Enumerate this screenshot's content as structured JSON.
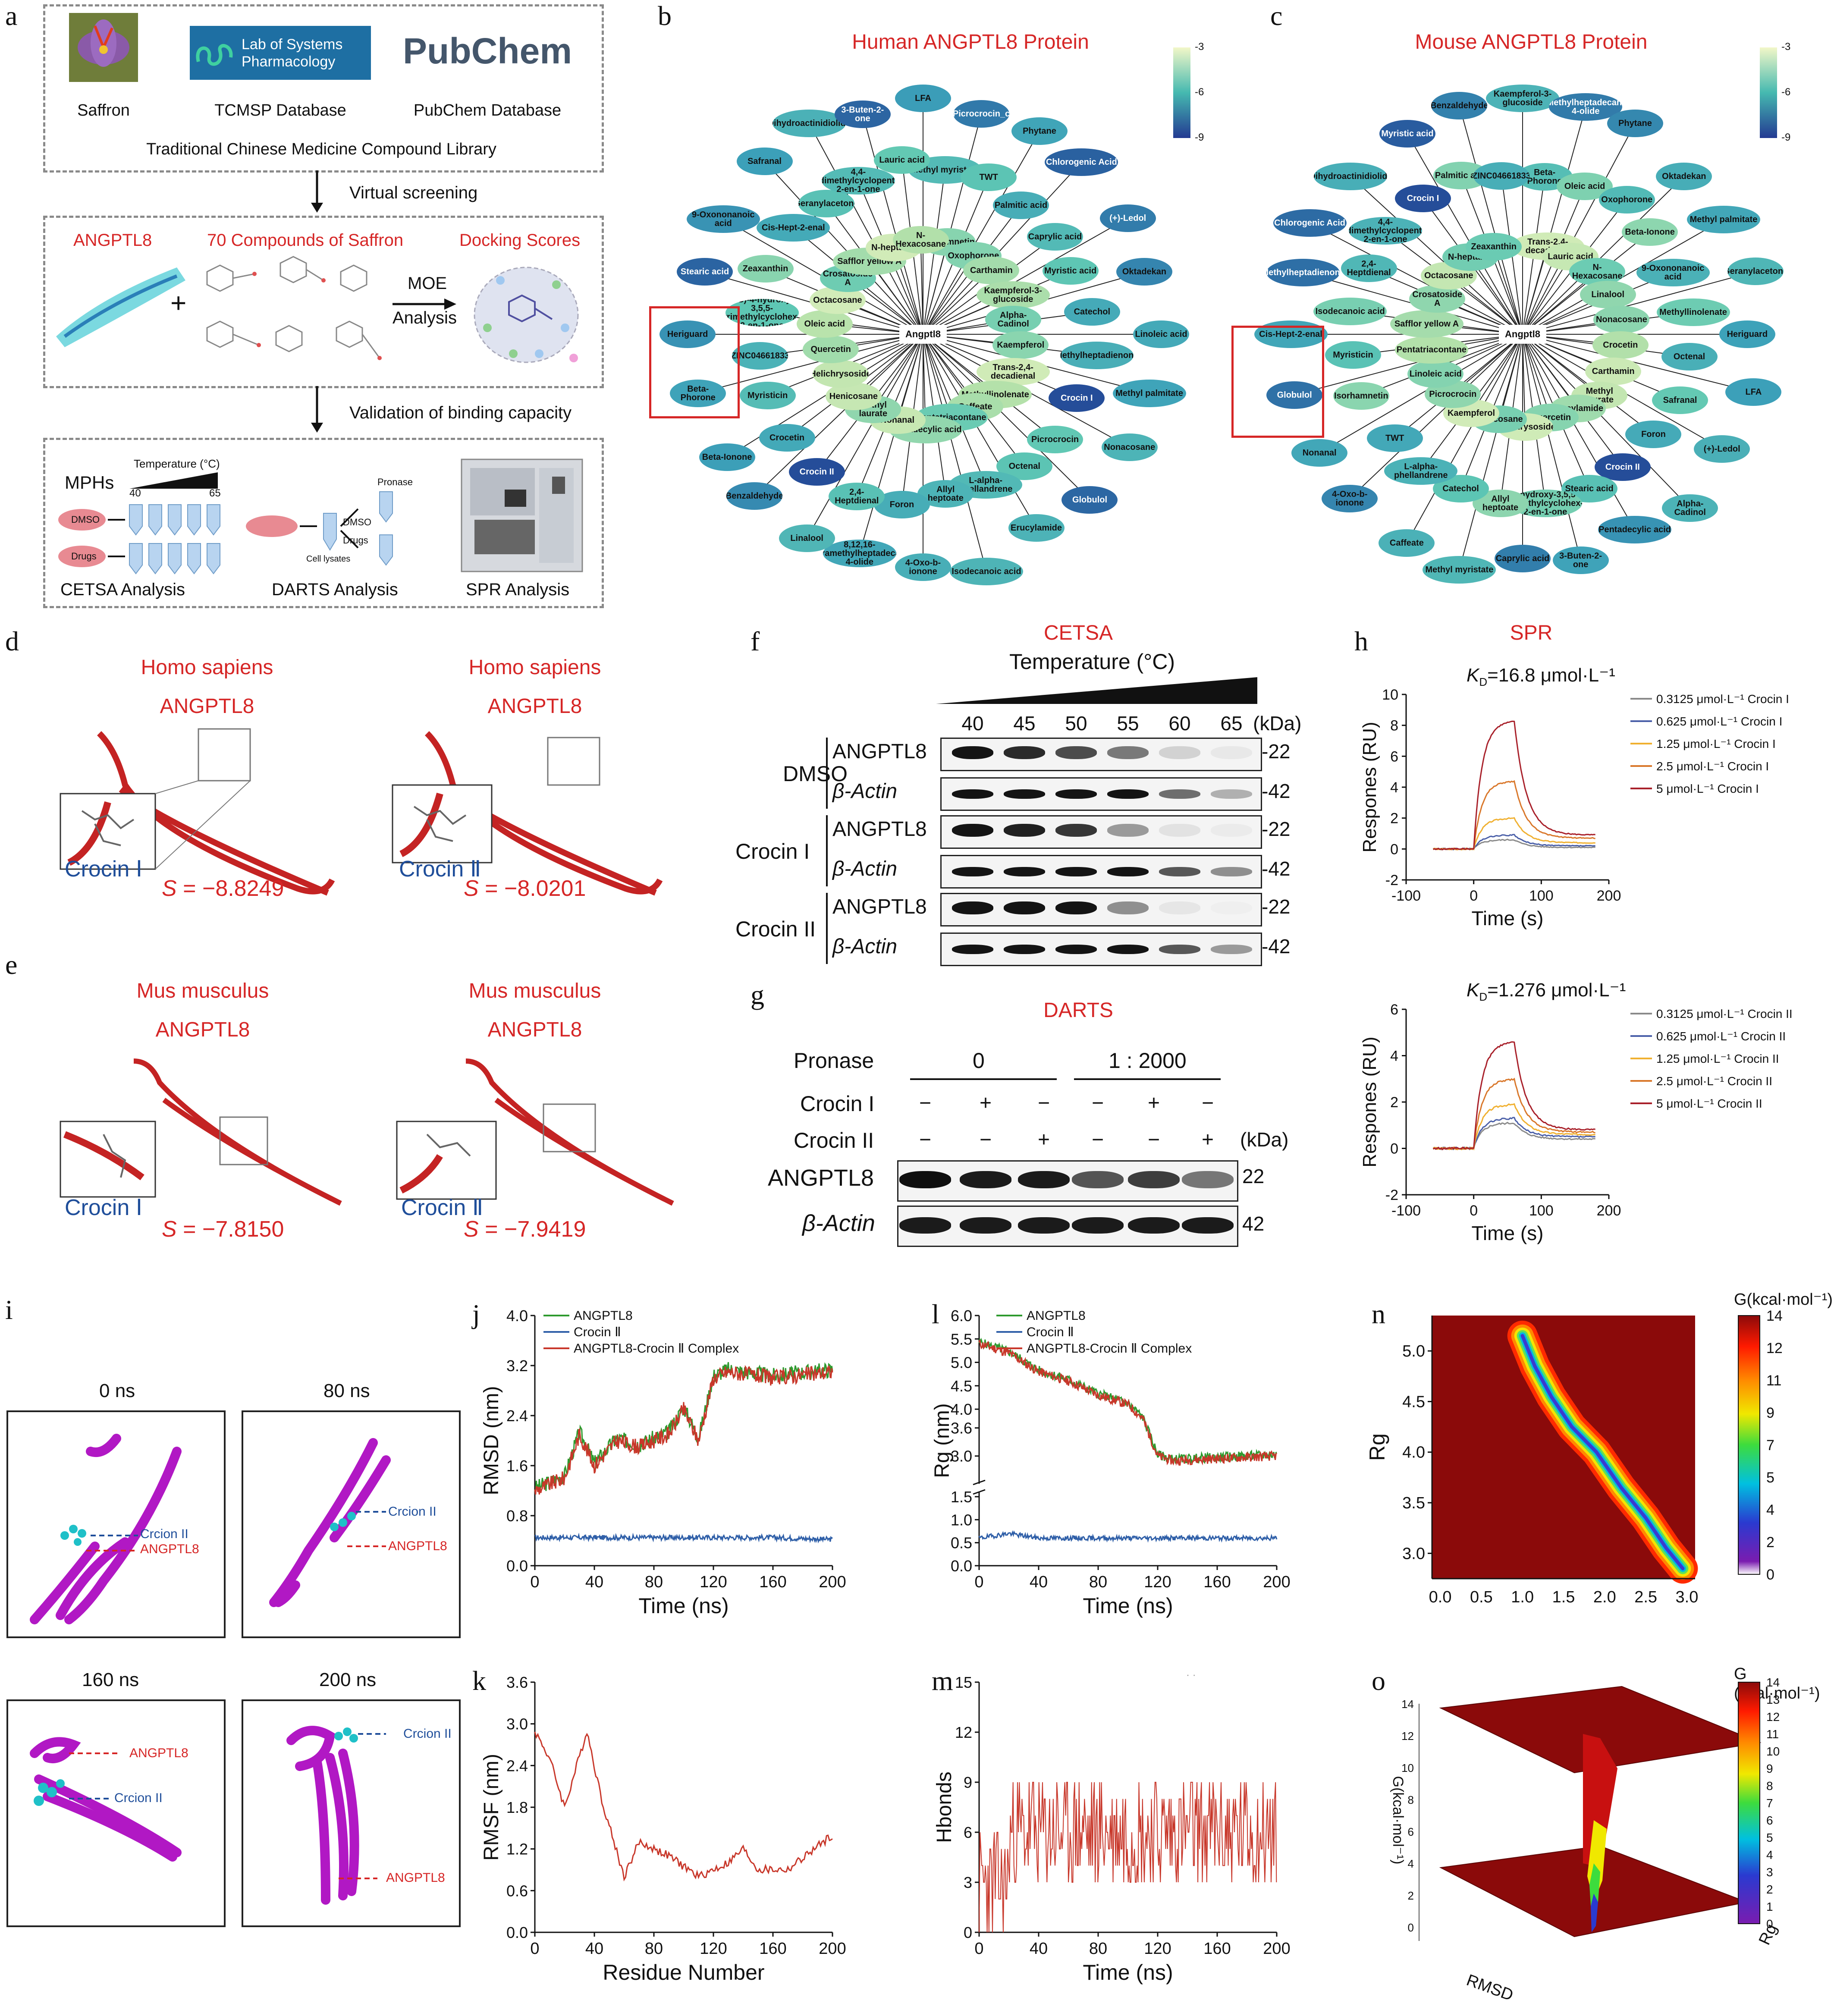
{
  "panel_labels": [
    "a",
    "b",
    "c",
    "d",
    "e",
    "f",
    "g",
    "h",
    "i",
    "j",
    "k",
    "l",
    "m",
    "n",
    "o"
  ],
  "a": {
    "sources": [
      "Saffron",
      "TCMSP Database",
      "PubChem Database"
    ],
    "tcmsp_logo": "Lab of Systems Pharmacology",
    "pubchem_logo": "PubChem",
    "library": "Traditional Chinese Medicine Compound Library",
    "arrow1": "Virtual screening",
    "target": "ANGPTL8",
    "compounds": "70 Compounds of Saffron",
    "scores": "Docking Scores",
    "plus": "+",
    "moe": "MOE",
    "analysis": "Analysis",
    "arrow2": "Validation of binding capacity",
    "mphs": "MPHs",
    "temp": "Temperature (°C)",
    "t40": "40",
    "t65": "65",
    "dmso": "DMSO",
    "drugs": "Drugs",
    "pronase": "Pronase",
    "cell_lysates": "Cell lysates",
    "cetsa": "CETSA Analysis",
    "darts": "DARTS Analysis",
    "spr": "SPR Analysis"
  },
  "b": {
    "title": "Human ANGPTL8 Protein",
    "center": "Angptl8",
    "colorbar": [
      "-3",
      "-6",
      "-9"
    ],
    "nodes": [
      "LFA",
      "Picrocrocin_c",
      "Phytane",
      "Chlorogenic Acid",
      "(+)-Ledol",
      "Oktadekan",
      "Linoleic acid",
      "Methyl palmitate",
      "Nonacosane",
      "Globulol",
      "Erucylamide",
      "Isodecanoic acid",
      "4-Oxo-b-ionone",
      "8,12,16-tetramethylheptadecan-4-olide",
      "Linalool",
      "Benzaldehyde",
      "Beta-Ionone",
      "Beta-Phorone",
      "Heriguard",
      "Stearic acid",
      "9-Oxononanoic acid",
      "Safranal",
      "Dihydroactinidiolide",
      "3-Buten-2-one",
      "Methyl myristate",
      "TWT",
      "Palmitic acid",
      "Caprylic acid",
      "Myristic acid",
      "Catechol",
      "Methylheptadienone",
      "Crocin I",
      "Picrocrocin",
      "Octenal",
      "L-alpha-phellandrene",
      "Allyl heptoate",
      "Foron",
      "2,4-Heptdienal",
      "Crocin II",
      "Crocetin",
      "Myristicin",
      "ZINC04661833",
      "(4S)-4-hydroxy-3,5,5-trimethylcyclohex-2-en-1-one",
      "Zeaxanthin",
      "Cis-Hept-2-enal",
      "Geranylacetone",
      "4,4-dimethylcyclopent-2-en-1-one",
      "Lauric acid",
      "Isorhamnetin",
      "Oxophorone",
      "Carthamin",
      "Kaempferol-3-glucoside",
      "Alpha-Cadinol",
      "Kaempferol",
      "Trans-2,4-decadienal",
      "Methyllinolenate",
      "Caffeate",
      "Pentatriacontane",
      "Pentadecylic acid",
      "Nonanal",
      "Methyl laurate",
      "Henicosane",
      "Helichrysoside",
      "Quercetin",
      "Oleic acid",
      "Octacosane",
      "Crosatoside A",
      "Safflor yellow A",
      "N-heptanal",
      "N-Hexacosane"
    ]
  },
  "c": {
    "title": "Mouse ANGPTL8 Protein",
    "center": "Angptl8",
    "colorbar": [
      "-3",
      "-6",
      "-9"
    ],
    "nodes": [
      "Kaempferol-3-glucoside",
      "Methylheptadecan-4-olide",
      "Phytane",
      "Oktadekan",
      "Methyl palmitate",
      "Geranylacetone",
      "Heriguard",
      "LFA",
      "(+)-Ledol",
      "Alpha-Cadinol",
      "Pentadecylic acid",
      "3-Buten-2-one",
      "Caprylic acid",
      "Methyl myristate",
      "Caffeate",
      "4-Oxo-b-ionone",
      "Nonanal",
      "Globulol",
      "Cis-Hept-2-enal",
      "Methylheptadienone",
      "Chlorogenic Acid",
      "Dihydroactinidiolide",
      "Myristic acid",
      "Benzaldehyde",
      "Beta-Phorone",
      "Oleic acid",
      "Oxophorone",
      "Beta-Ionone",
      "9-Oxononanoic acid",
      "Methyllinolenate",
      "Octenal",
      "Safranal",
      "Foron",
      "Crocin II",
      "Stearic acid",
      "4-hydroxy-3,5,5-trimethylcyclohex-2-en-1-one",
      "Allyl heptoate",
      "Catechol",
      "L-alpha-phellandrene",
      "TWT",
      "Isorhamnetin",
      "Myristicin",
      "Isodecanoic acid",
      "2,4-Heptdienal",
      "4,4-dimethylcyclopent-2-en-1-one",
      "Crocin I",
      "Palmitic acid",
      "ZINC04661833",
      "Trans-2,4-decadienal",
      "Lauric acid",
      "N-Hexacosane",
      "Linalool",
      "Nonacosane",
      "Crocetin",
      "Carthamin",
      "Methyl laurate",
      "Erucylamide",
      "Quercetin",
      "Helichrysoside",
      "Henicosane",
      "Kaempferol",
      "Picrocrocin",
      "Linoleic acid",
      "Pentatriacontane",
      "Safflor yellow A",
      "Crosatoside A",
      "Octacosane",
      "N-heptanal",
      "Zeaxanthin"
    ]
  },
  "d": {
    "species": "Homo  sapiens",
    "protein": "ANGPTL8",
    "ligand1": "Crocin Ⅰ",
    "ligand2": "Crocin Ⅱ",
    "score_prefix": "S",
    "score1": " = −8.8249",
    "score2": " = −8.0201"
  },
  "e": {
    "species": "Mus musculus",
    "protein": "ANGPTL8",
    "ligand1": "Crocin Ⅰ",
    "ligand2": "Crocin Ⅱ",
    "score_prefix": "S",
    "score1": " = −7.8150",
    "score2": " = −7.9419"
  },
  "f": {
    "title": "CETSA",
    "temperature_label": "Temperature (°C)",
    "temps": [
      "40",
      "45",
      "50",
      "55",
      "60",
      "65"
    ],
    "kda": "(kDa)",
    "groups": [
      "DMSO",
      "Crocin I",
      "Crocin II"
    ],
    "proteins": [
      "ANGPTL8",
      "β-Actin"
    ],
    "mw": [
      "22",
      "42"
    ]
  },
  "g": {
    "title": "DARTS",
    "pronase": "Pronase",
    "doses": [
      "0",
      "1 : 2000"
    ],
    "rows": [
      "Crocin I",
      "Crocin II"
    ],
    "crocin1_signs": [
      "−",
      "+",
      "−",
      "−",
      "+",
      "−"
    ],
    "crocin2_signs": [
      "−",
      "−",
      "+",
      "−",
      "−",
      "+"
    ],
    "kda": "(kDa)",
    "proteins": [
      "ANGPTL8",
      "β-Actin"
    ],
    "mw": [
      "22",
      "42"
    ]
  },
  "h": {
    "title": "SPR",
    "kd1_prefix": "K",
    "kd_sub": "D",
    "kd1": "=16.8 μmol·L⁻¹",
    "kd2": "=1.276 μmol·L⁻¹",
    "ylabel": "Respones (RU)",
    "xlabel": "Time (s)",
    "legend1": [
      "0.3125 μmol·L⁻¹ Crocin I",
      "0.625 μmol·L⁻¹ Crocin I",
      "1.25 μmol·L⁻¹ Crocin I",
      "2.5 μmol·L⁻¹ Crocin I",
      "5 μmol·L⁻¹ Crocin I"
    ],
    "legend2": [
      "0.3125 μmol·L⁻¹ Crocin II",
      "0.625 μmol·L⁻¹ Crocin II",
      "1.25 μmol·L⁻¹ Crocin II",
      "2.5 μmol·L⁻¹ Crocin II",
      "5 μmol·L⁻¹ Crocin II"
    ],
    "series_colors": [
      "#8a8a8a",
      "#4a5fa8",
      "#f0b030",
      "#d9772a",
      "#a8202a"
    ]
  },
  "i": {
    "times": [
      "0 ns",
      "80 ns",
      "160 ns",
      "200 ns"
    ],
    "crocin": "Crcion II",
    "crocin0": "Crcion II",
    "angptl8": "ANGPTL8"
  },
  "m": {
    "note": "· ·"
  },
  "n": {
    "title": "G(kcal·mol⁻¹)",
    "ylabel": "Rg",
    "cbar_ticks": [
      "14",
      "12",
      "11",
      "9",
      "7",
      "5",
      "4",
      "2",
      "0"
    ]
  },
  "o": {
    "title": "G (kcal·mol⁻¹)",
    "zlabel": "G(kcal·mol⁻¹)",
    "xlabel": "RMSD",
    "ylabel": "Rg",
    "cbar_ticks": [
      "14",
      "13",
      "12",
      "11",
      "10",
      "9",
      "8",
      "7",
      "6",
      "5",
      "4",
      "3",
      "2",
      "1",
      "0"
    ]
  },
  "chart_data": [
    {
      "id": "h-top",
      "type": "line",
      "title": "SPR Crocin I",
      "xlabel": "Time (s)",
      "ylabel": "Respones (RU)",
      "xlim": [
        -100,
        200
      ],
      "ylim": [
        -2,
        10
      ],
      "xticks": [
        -100,
        0,
        100,
        200
      ],
      "yticks": [
        -2,
        0,
        2,
        4,
        6,
        8,
        10
      ],
      "series": [
        {
          "name": "0.3125 μmol·L⁻¹ Crocin I",
          "assoc": 0.6,
          "end": 0.1
        },
        {
          "name": "0.625 μmol·L⁻¹ Crocin I",
          "assoc": 0.9,
          "end": 0.2
        },
        {
          "name": "1.25 μmol·L⁻¹ Crocin I",
          "assoc": 2.0,
          "end": 0.4
        },
        {
          "name": "2.5 μmol·L⁻¹ Crocin I",
          "assoc": 4.4,
          "end": 0.7
        },
        {
          "name": "5 μmol·L⁻¹ Crocin I",
          "assoc": 8.3,
          "end": 0.9
        }
      ]
    },
    {
      "id": "h-bottom",
      "type": "line",
      "title": "SPR Crocin II",
      "xlabel": "Time (s)",
      "ylabel": "Respones (RU)",
      "xlim": [
        -100,
        200
      ],
      "ylim": [
        -2,
        6
      ],
      "xticks": [
        -100,
        0,
        100,
        200
      ],
      "yticks": [
        -2,
        0,
        2,
        4,
        6
      ],
      "series": [
        {
          "name": "0.3125 μmol·L⁻¹ Crocin II",
          "assoc": 1.1,
          "end": 0.4
        },
        {
          "name": "0.625 μmol·L⁻¹ Crocin II",
          "assoc": 1.3,
          "end": 0.5
        },
        {
          "name": "1.25 μmol·L⁻¹ Crocin II",
          "assoc": 1.9,
          "end": 0.6
        },
        {
          "name": "2.5 μmol·L⁻¹ Crocin II",
          "assoc": 3.0,
          "end": 0.7
        },
        {
          "name": "5 μmol·L⁻¹ Crocin II",
          "assoc": 4.6,
          "end": 0.8
        }
      ]
    },
    {
      "id": "j",
      "type": "line",
      "xlabel": "Time (ns)",
      "ylabel": "RMSD (nm)",
      "xlim": [
        0,
        200
      ],
      "ylim": [
        0,
        4.0
      ],
      "xticks": [
        0,
        40,
        80,
        120,
        160,
        200
      ],
      "yticks": [
        0.0,
        0.8,
        1.6,
        2.4,
        3.2,
        4.0
      ],
      "legend": [
        "ANGPTL8",
        "Crocin Ⅱ",
        "ANGPTL8-Crocin Ⅱ Complex"
      ],
      "colors": [
        "#2e9a2e",
        "#2f5fa8",
        "#c8372a"
      ],
      "key_points": {
        "x": [
          0,
          20,
          30,
          40,
          55,
          70,
          90,
          100,
          110,
          120,
          130,
          160,
          200
        ],
        "complex": [
          1.2,
          1.4,
          2.1,
          1.6,
          2.0,
          1.9,
          2.1,
          2.5,
          2.0,
          3.0,
          3.1,
          3.0,
          3.1
        ],
        "crocin": [
          0.45,
          0.45,
          0.45,
          0.45,
          0.45,
          0.45,
          0.45,
          0.45,
          0.45,
          0.45,
          0.45,
          0.45,
          0.42
        ]
      }
    },
    {
      "id": "k",
      "type": "line",
      "xlabel": "Residue Number",
      "ylabel": "RMSF (nm)",
      "xlim": [
        0,
        200
      ],
      "ylim": [
        0,
        3.6
      ],
      "xticks": [
        0,
        40,
        80,
        120,
        160,
        200
      ],
      "yticks": [
        0.0,
        0.6,
        1.2,
        1.8,
        2.4,
        3.0,
        3.6
      ],
      "key_points": {
        "x": [
          0,
          10,
          20,
          35,
          45,
          60,
          70,
          90,
          110,
          130,
          140,
          150,
          170,
          200
        ],
        "rmsf": [
          2.9,
          2.5,
          1.8,
          2.9,
          1.9,
          0.8,
          1.3,
          1.1,
          0.8,
          1.0,
          1.2,
          0.9,
          0.9,
          1.4
        ]
      }
    },
    {
      "id": "l",
      "type": "line",
      "xlabel": "Time (ns)",
      "ylabel": "Rg (nm)",
      "xlim": [
        0,
        200
      ],
      "yticks": [
        0.0,
        0.5,
        1.0,
        1.5,
        3.0,
        3.6,
        4.0,
        4.5,
        5.0,
        5.5,
        6.0
      ],
      "legend": [
        "ANGPTL8",
        "Crocin Ⅱ",
        "ANGPTL8-Crocin Ⅱ Complex"
      ],
      "key_points": {
        "x": [
          0,
          20,
          40,
          60,
          80,
          100,
          110,
          120,
          130,
          200
        ],
        "complex": [
          5.4,
          5.2,
          4.8,
          4.6,
          4.3,
          4.1,
          3.8,
          3.0,
          2.9,
          3.0
        ],
        "crocin": [
          0.6,
          0.7,
          0.6,
          0.6,
          0.6,
          0.6,
          0.6,
          0.6,
          0.6,
          0.6
        ]
      }
    },
    {
      "id": "m",
      "type": "line",
      "xlabel": "Time (ns)",
      "ylabel": "Hbonds",
      "xlim": [
        0,
        200
      ],
      "ylim": [
        0,
        15
      ],
      "xticks": [
        0,
        40,
        80,
        120,
        160,
        200
      ],
      "yticks": [
        0,
        3,
        6,
        9,
        12,
        15
      ],
      "summary": {
        "mean_early": 3,
        "mean_late": 6,
        "max": 12,
        "min": 0
      }
    },
    {
      "id": "n",
      "type": "heatmap",
      "xlabel": "",
      "ylabel": "Rg",
      "xticks": [
        0.0,
        0.5,
        1.0,
        1.5,
        2.0,
        2.5,
        3.0
      ],
      "yticks": [
        3.0,
        3.5,
        4.0,
        4.5,
        5.0
      ],
      "colorbar": [
        0,
        2,
        4,
        5,
        7,
        9,
        11,
        12,
        14
      ]
    },
    {
      "id": "o",
      "type": "heatmap",
      "xlabel": "RMSD",
      "ylabel": "Rg",
      "zlabel": "G(kcal·mol⁻¹)",
      "colorbar": [
        0,
        14
      ]
    }
  ]
}
